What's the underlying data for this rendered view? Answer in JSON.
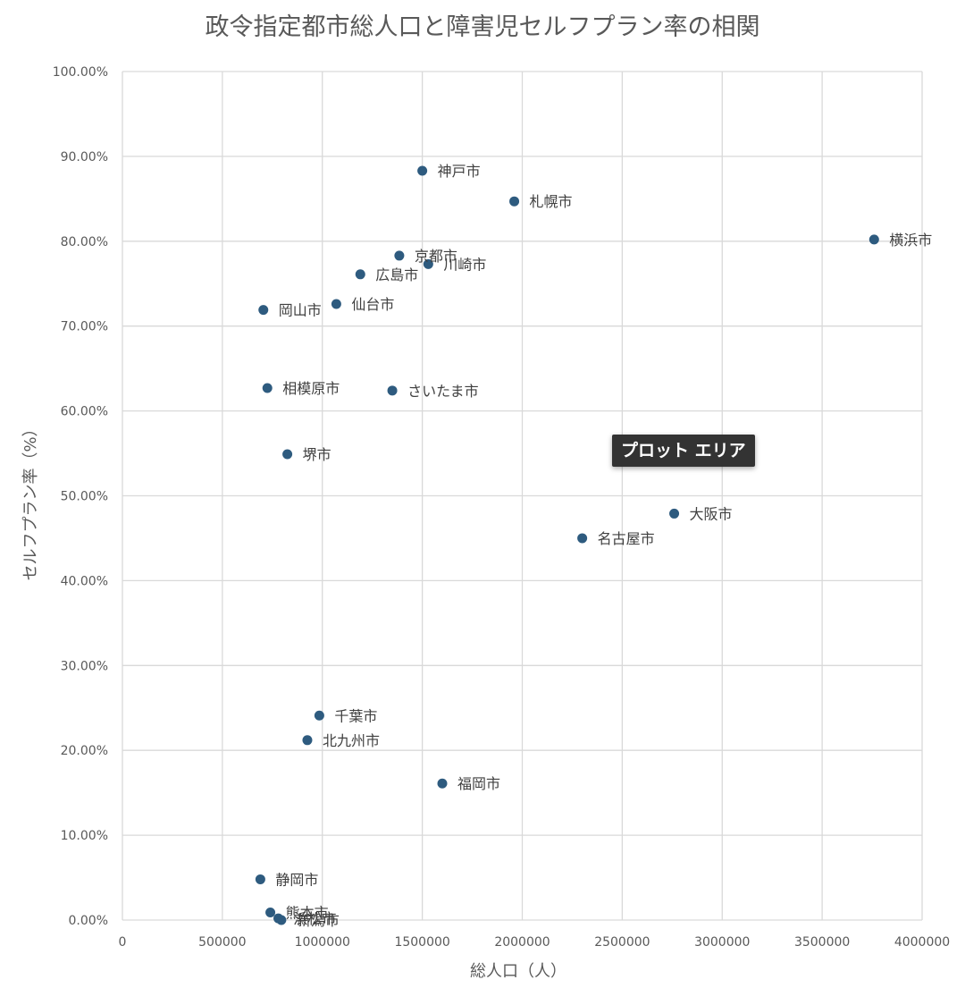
{
  "chart_data": {
    "type": "scatter",
    "title": "政令指定都市総人口と障害児セルフプラン率の相関",
    "xlabel": "総人口（人）",
    "ylabel": "セルフプラン率（%）",
    "xlim": [
      0,
      4000000
    ],
    "ylim": [
      0,
      1
    ],
    "x_ticks": [
      "0",
      "500000",
      "1000000",
      "1500000",
      "2000000",
      "2500000",
      "3000000",
      "3500000",
      "4000000"
    ],
    "y_ticks": [
      "0.00%",
      "10.00%",
      "20.00%",
      "30.00%",
      "40.00%",
      "50.00%",
      "60.00%",
      "70.00%",
      "80.00%",
      "90.00%",
      "100.00%"
    ],
    "grid": true,
    "legend": "none",
    "marker_color": "#2e5b7f",
    "points": [
      {
        "label": "神戸市",
        "x": 1500000,
        "y": 0.883
      },
      {
        "label": "札幌市",
        "x": 1960000,
        "y": 0.847
      },
      {
        "label": "横浜市",
        "x": 3760000,
        "y": 0.802
      },
      {
        "label": "京都市",
        "x": 1385000,
        "y": 0.783
      },
      {
        "label": "川崎市",
        "x": 1530000,
        "y": 0.773
      },
      {
        "label": "広島市",
        "x": 1190000,
        "y": 0.761
      },
      {
        "label": "仙台市",
        "x": 1070000,
        "y": 0.726
      },
      {
        "label": "岡山市",
        "x": 705000,
        "y": 0.719
      },
      {
        "label": "相模原市",
        "x": 725000,
        "y": 0.627
      },
      {
        "label": "さいたま市",
        "x": 1350000,
        "y": 0.624
      },
      {
        "label": "堺市",
        "x": 825000,
        "y": 0.549
      },
      {
        "label": "大阪市",
        "x": 2760000,
        "y": 0.479
      },
      {
        "label": "名古屋市",
        "x": 2300000,
        "y": 0.45
      },
      {
        "label": "千葉市",
        "x": 985000,
        "y": 0.241
      },
      {
        "label": "北九州市",
        "x": 925000,
        "y": 0.212
      },
      {
        "label": "福岡市",
        "x": 1600000,
        "y": 0.161
      },
      {
        "label": "静岡市",
        "x": 690000,
        "y": 0.048
      },
      {
        "label": "熊本市",
        "x": 740000,
        "y": 0.009
      },
      {
        "label": "浜松市",
        "x": 780000,
        "y": 0.002
      },
      {
        "label": "新潟市",
        "x": 795000,
        "y": 0.0
      }
    ]
  },
  "tooltip": {
    "text": "プロット エリア"
  }
}
